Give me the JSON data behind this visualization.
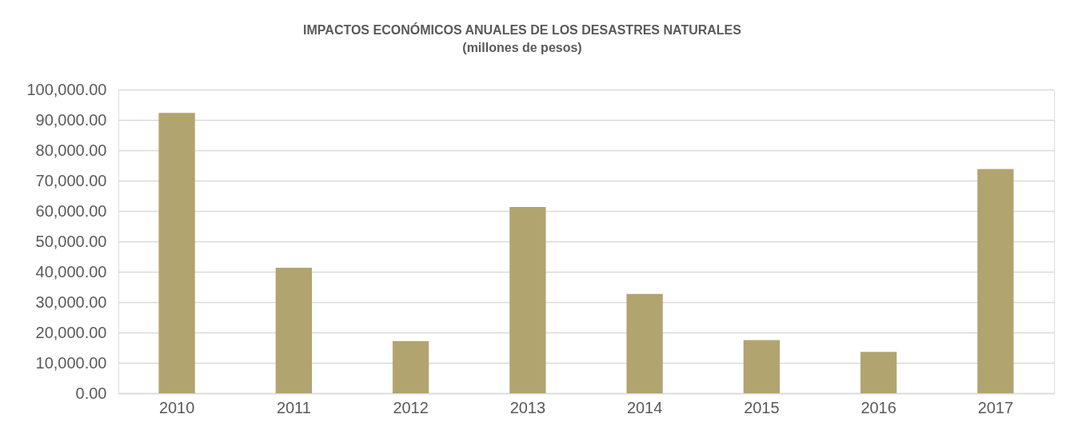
{
  "chart_data": {
    "type": "bar",
    "title": "IMPACTOS ECONÓMICOS ANUALES DE LOS DESASTRES NATURALES",
    "subtitle": "(millones de pesos)",
    "categories": [
      "2010",
      "2011",
      "2012",
      "2013",
      "2014",
      "2015",
      "2016",
      "2017"
    ],
    "values": [
      92300,
      41300,
      17200,
      61300,
      32700,
      17500,
      13600,
      73800
    ],
    "color": "#b1a46f",
    "ylim": [
      0,
      100000
    ],
    "yticks": [
      {
        "value": 0,
        "label": "0.00"
      },
      {
        "value": 10000,
        "label": "10,000.00"
      },
      {
        "value": 20000,
        "label": "20,000.00"
      },
      {
        "value": 30000,
        "label": "30,000.00"
      },
      {
        "value": 40000,
        "label": "40,000.00"
      },
      {
        "value": 50000,
        "label": "50,000.00"
      },
      {
        "value": 60000,
        "label": "60,000.00"
      },
      {
        "value": 70000,
        "label": "70,000.00"
      },
      {
        "value": 80000,
        "label": "80,000.00"
      },
      {
        "value": 90000,
        "label": "90,000.00"
      },
      {
        "value": 100000,
        "label": "100,000.00"
      }
    ],
    "grid": "y"
  }
}
